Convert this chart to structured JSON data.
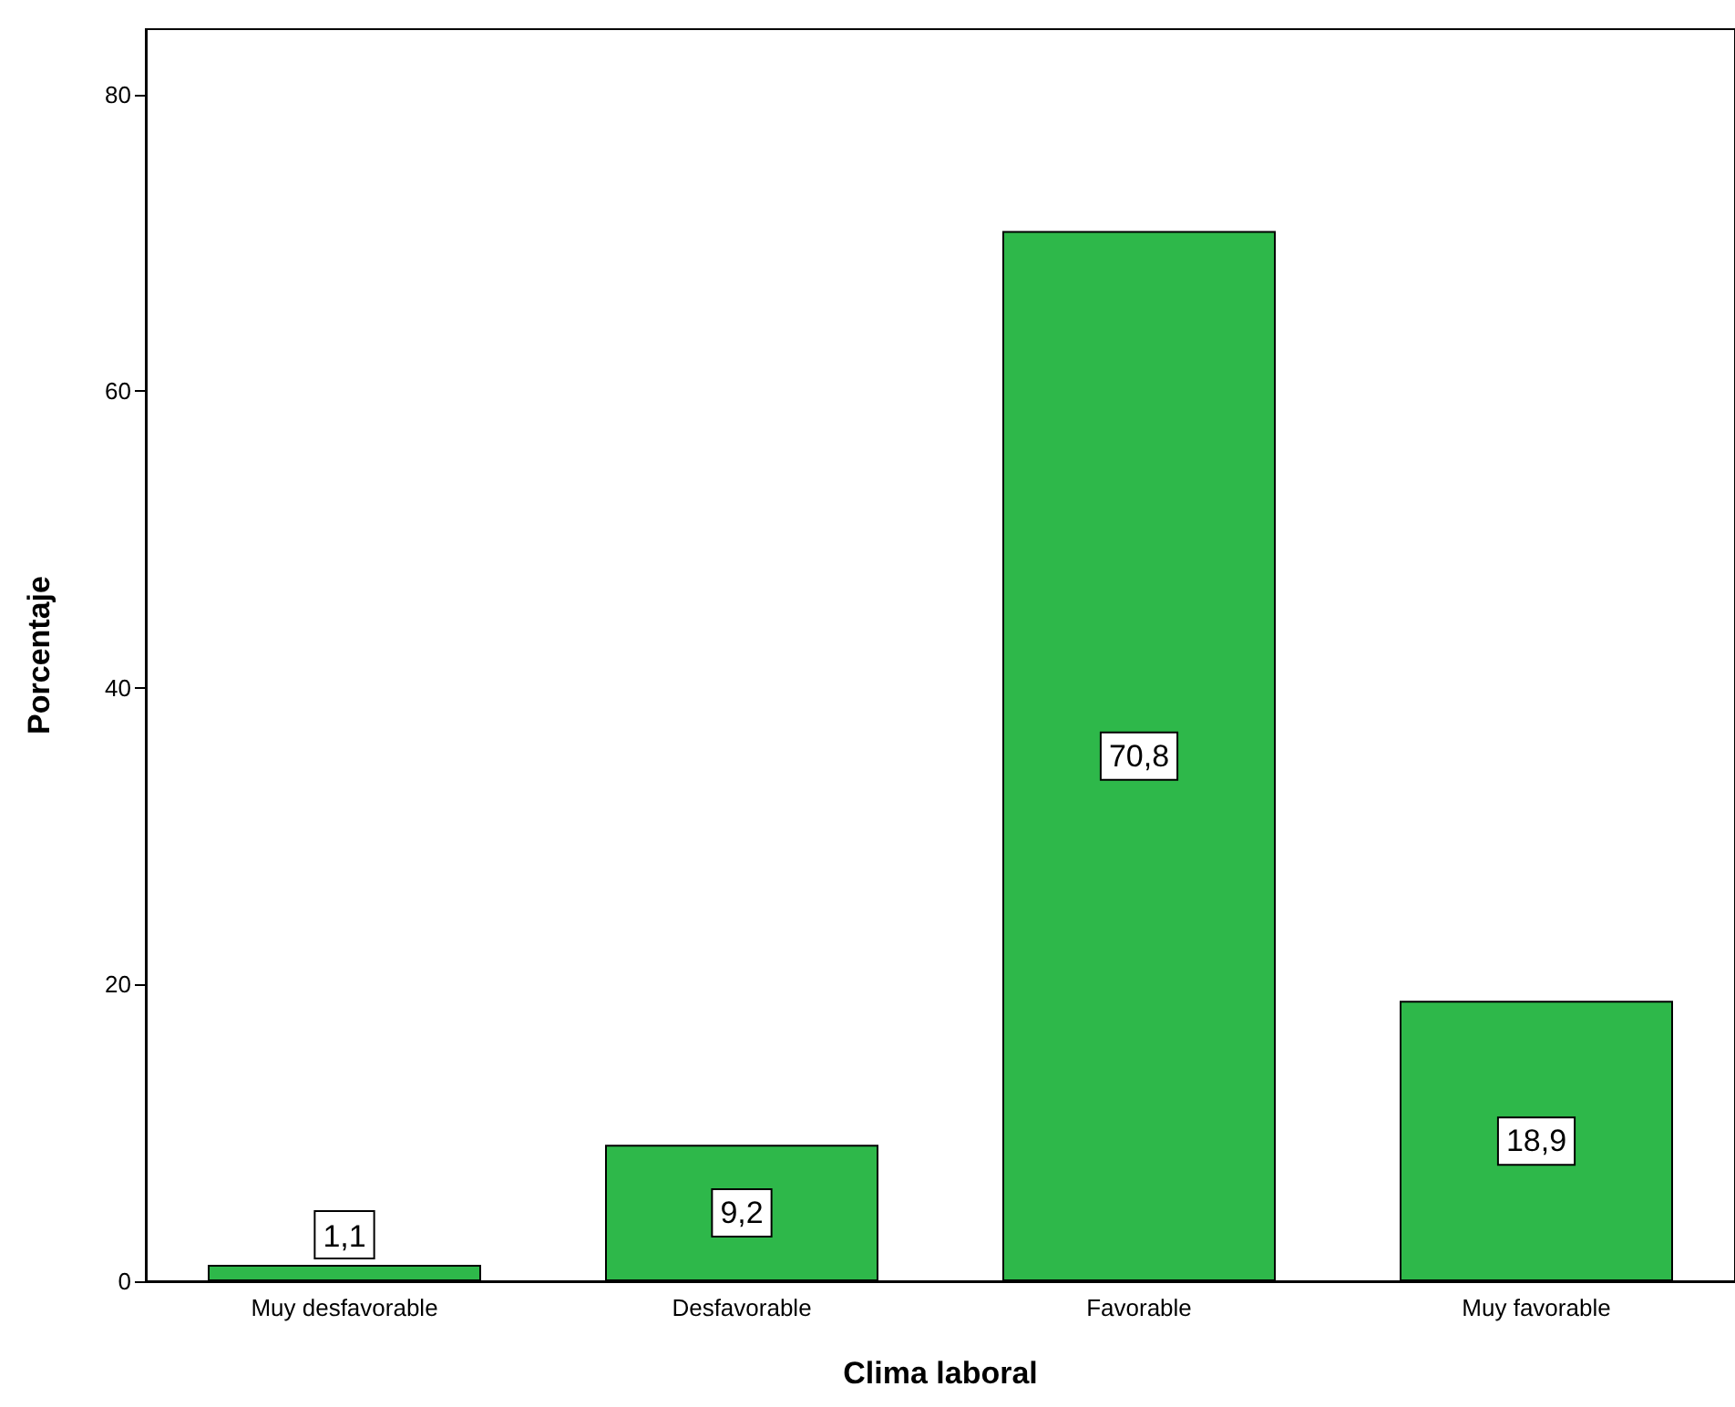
{
  "chart_data": {
    "type": "bar",
    "xlabel": "Clima laboral",
    "ylabel": "Porcentaje",
    "categories": [
      "Muy desfavorable",
      "Desfavorable",
      "Favorable",
      "Muy favorable"
    ],
    "values": [
      1.1,
      9.2,
      70.8,
      18.9
    ],
    "value_labels": [
      "1,1",
      "9,2",
      "70,8",
      "18,9"
    ],
    "color": "#2eb84a",
    "ylim": [
      0,
      84.4
    ],
    "yticks": [
      0,
      20,
      40,
      60,
      80
    ],
    "grid": false
  }
}
